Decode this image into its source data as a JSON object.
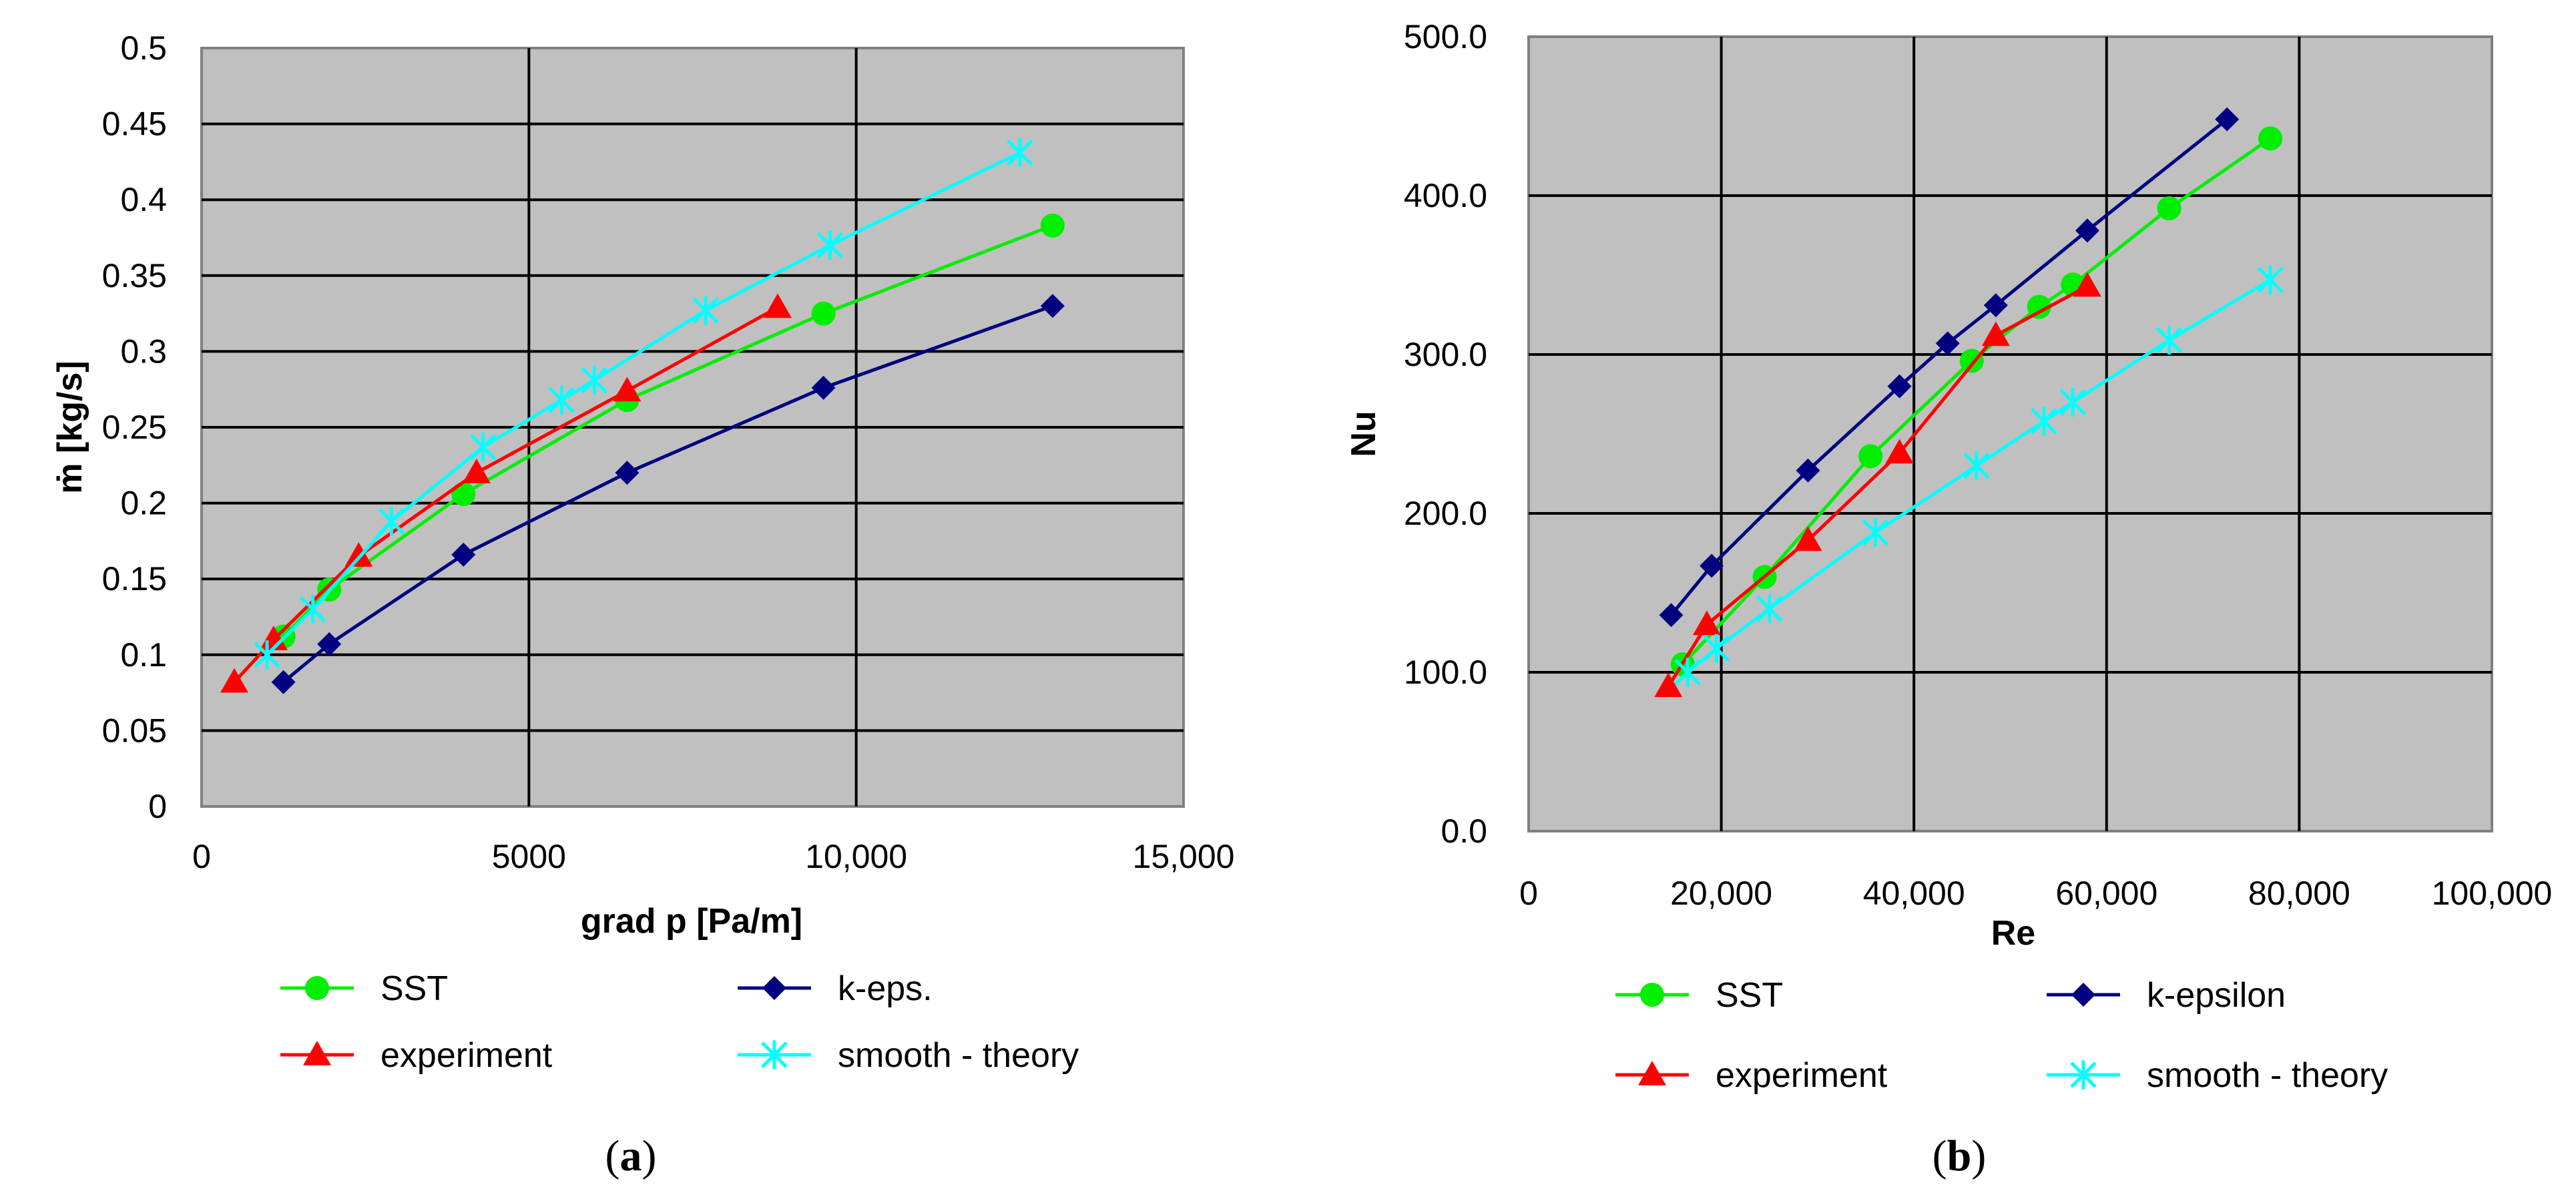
{
  "chart_data": [
    {
      "type": "line",
      "panel_label": "a",
      "xlabel": "grad p [Pa/m]",
      "ylabel": "ṁ [kg/s]",
      "xlim": [
        0,
        15000
      ],
      "ylim": [
        0,
        0.5
      ],
      "xticks": [
        0,
        5000,
        10000,
        15000
      ],
      "xtick_labels": [
        "0",
        "5000",
        "10,000",
        "15,000"
      ],
      "yticks": [
        0,
        0.05,
        0.1,
        0.15,
        0.2,
        0.25,
        0.3,
        0.35,
        0.4,
        0.45,
        0.5
      ],
      "ytick_labels": [
        "0",
        "0.05",
        "0.1",
        "0.15",
        "0.2",
        "0.25",
        "0.3",
        "0.35",
        "0.4",
        "0.45",
        "0.5"
      ],
      "grid": true,
      "legend_position": "bottom",
      "series": [
        {
          "name": "SST",
          "color": "#00ee00",
          "marker": "circle",
          "x": [
            1250,
            1950,
            4000,
            6500,
            9500,
            13000
          ],
          "y": [
            0.112,
            0.143,
            0.206,
            0.268,
            0.325,
            0.383
          ]
        },
        {
          "name": "k-eps.",
          "color": "#000080",
          "marker": "diamond",
          "x": [
            1250,
            1950,
            4000,
            6500,
            9500,
            13000
          ],
          "y": [
            0.082,
            0.107,
            0.166,
            0.22,
            0.276,
            0.33
          ]
        },
        {
          "name": "experiment",
          "color": "#ff0000",
          "marker": "triangle",
          "x": [
            500,
            1100,
            2400,
            4200,
            6500,
            8800
          ],
          "y": [
            0.082,
            0.11,
            0.165,
            0.22,
            0.274,
            0.329
          ]
        },
        {
          "name": "smooth - theory",
          "color": "#00ffff",
          "marker": "asterisk",
          "x": [
            1000,
            1700,
            2900,
            4300,
            5500,
            6000,
            7700,
            9600,
            12500
          ],
          "y": [
            0.1,
            0.13,
            0.188,
            0.237,
            0.268,
            0.281,
            0.327,
            0.37,
            0.431
          ]
        }
      ]
    },
    {
      "type": "line",
      "panel_label": "b",
      "xlabel": "Re",
      "ylabel": "Nu",
      "xlim": [
        0,
        100000
      ],
      "ylim": [
        0,
        500
      ],
      "xticks": [
        0,
        20000,
        40000,
        60000,
        80000,
        100000
      ],
      "xtick_labels": [
        "0",
        "20,000",
        "40,000",
        "60,000",
        "80,000",
        "100,000"
      ],
      "yticks": [
        0,
        100,
        200,
        300,
        400,
        500
      ],
      "ytick_labels": [
        "0.0",
        "100.0",
        "200.0",
        "300.0",
        "400.0",
        "500.0"
      ],
      "grid": true,
      "legend_position": "bottom",
      "series": [
        {
          "name": "SST",
          "color": "#00ee00",
          "marker": "circle",
          "x": [
            16000,
            24500,
            35500,
            46000,
            53000,
            56500,
            66500,
            77000
          ],
          "y": [
            105,
            160,
            236,
            296,
            330,
            344,
            392,
            436
          ]
        },
        {
          "name": "k-epsilon",
          "color": "#000080",
          "marker": "diamond",
          "x": [
            14800,
            19000,
            29000,
            38500,
            43500,
            48500,
            58000,
            72500
          ],
          "y": [
            136,
            167,
            227,
            280,
            307,
            331,
            378,
            448
          ]
        },
        {
          "name": "experiment",
          "color": "#ff0000",
          "marker": "triangle",
          "x": [
            14500,
            18500,
            29000,
            38500,
            48500,
            58000
          ],
          "y": [
            91,
            130,
            183,
            238,
            312,
            343
          ]
        },
        {
          "name": "smooth - theory",
          "color": "#00ffff",
          "marker": "asterisk",
          "x": [
            16500,
            19500,
            25000,
            36000,
            46500,
            53500,
            56500,
            66500,
            77000
          ],
          "y": [
            100,
            115,
            140,
            188,
            230,
            258,
            270,
            309,
            347
          ]
        }
      ]
    }
  ]
}
